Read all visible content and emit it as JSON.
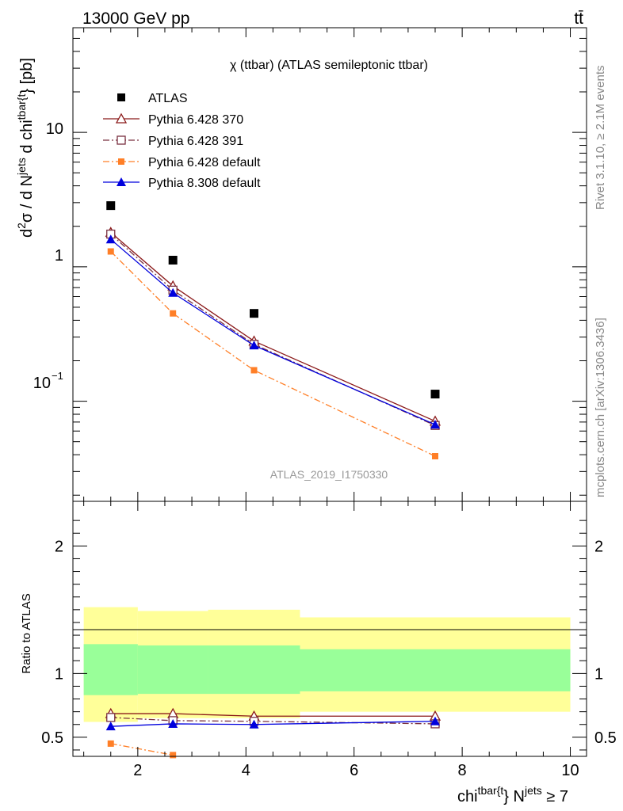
{
  "header": {
    "energy_label": "13000 GeV pp",
    "process_label": "tt̄"
  },
  "side_labels": {
    "rivet": "Rivet 3.1.10, ≥ 2.1M events",
    "mcplots": "mcplots.cern.ch [arXiv:1306.3436]"
  },
  "chart_data": [
    {
      "type": "scatter",
      "title": "χ (ttbar) (ATLAS semileptonic ttbar)",
      "watermark": "ATLAS_2019_I1750330",
      "ylabel": {
        "prefix": "d",
        "sup1": "2",
        "mid": "σ / d N",
        "sup2": "jets",
        "mid2": " d chi",
        "sup3": "tbar{t",
        "suffix": "} [pb]"
      },
      "yscale": "log",
      "ylim": [
        0.018,
        60
      ],
      "xlim": [
        0.8,
        10.3
      ],
      "y_tick_labels": [
        "10",
        "1",
        "10"
      ],
      "y_tick_exp": "−1",
      "x": [
        1.5,
        2.65,
        4.15,
        7.5
      ],
      "series": [
        {
          "name": "ATLAS",
          "color": "#000000",
          "marker": "square-filled",
          "line": "none",
          "values": [
            2.85,
            1.12,
            0.45,
            0.113
          ]
        },
        {
          "name": "Pythia 6.428 370",
          "color": "#8b1a1a",
          "marker": "triangle-open",
          "line": "solid",
          "values": [
            1.8,
            0.72,
            0.28,
            0.071
          ]
        },
        {
          "name": "Pythia 6.428 391",
          "color": "#7a3040",
          "marker": "square-open",
          "line": "dashdot",
          "values": [
            1.75,
            0.67,
            0.265,
            0.066
          ]
        },
        {
          "name": "Pythia 6.428 default",
          "color": "#ff7f27",
          "marker": "square-filled",
          "line": "dashdot",
          "values": [
            1.3,
            0.45,
            0.17,
            0.039
          ]
        },
        {
          "name": "Pythia 8.308 default",
          "color": "#0000dd",
          "marker": "triangle-filled",
          "line": "solid",
          "values": [
            1.6,
            0.64,
            0.26,
            0.067
          ]
        }
      ]
    },
    {
      "type": "line",
      "ylabel": "Ratio to ATLAS",
      "xlabel": {
        "prefix": "chi",
        "sup1": "tbar{t",
        "mid": "} N",
        "sup2": "jets",
        "suffix": " ≥ 7"
      },
      "xlim": [
        0.8,
        10.3
      ],
      "ylim": [
        0.35,
        2.35
      ],
      "x_ticks": [
        2,
        4,
        6,
        8,
        10
      ],
      "y_ticks": [
        0.5,
        1,
        2
      ],
      "bin_edges": [
        1,
        2,
        3.3,
        5,
        10
      ],
      "band_outer": {
        "color": "#ffff99",
        "lo": [
          0.62,
          0.65,
          0.65,
          0.7
        ],
        "hi": [
          1.52,
          1.49,
          1.5,
          1.44
        ]
      },
      "band_inner": {
        "color": "#99ff99",
        "lo": [
          0.83,
          0.84,
          0.84,
          0.86
        ],
        "hi": [
          1.23,
          1.22,
          1.22,
          1.19
        ]
      },
      "series": [
        {
          "name": "Pythia 6.428 370",
          "color": "#8b1a1a",
          "marker": "triangle-open",
          "line": "solid",
          "values": [
            0.685,
            0.685,
            0.665,
            0.665
          ]
        },
        {
          "name": "Pythia 6.428 391",
          "color": "#7a3040",
          "marker": "square-open",
          "line": "dashdot",
          "values": [
            0.655,
            0.63,
            0.625,
            0.605
          ]
        },
        {
          "name": "Pythia 6.428 default",
          "color": "#ff7f27",
          "marker": "square-filled",
          "line": "dashdot",
          "values": [
            0.45,
            0.36,
            null,
            null
          ]
        },
        {
          "name": "Pythia 8.308 default",
          "color": "#0000dd",
          "marker": "triangle-filled",
          "line": "solid",
          "values": [
            0.585,
            0.605,
            0.6,
            0.625
          ]
        }
      ]
    }
  ]
}
